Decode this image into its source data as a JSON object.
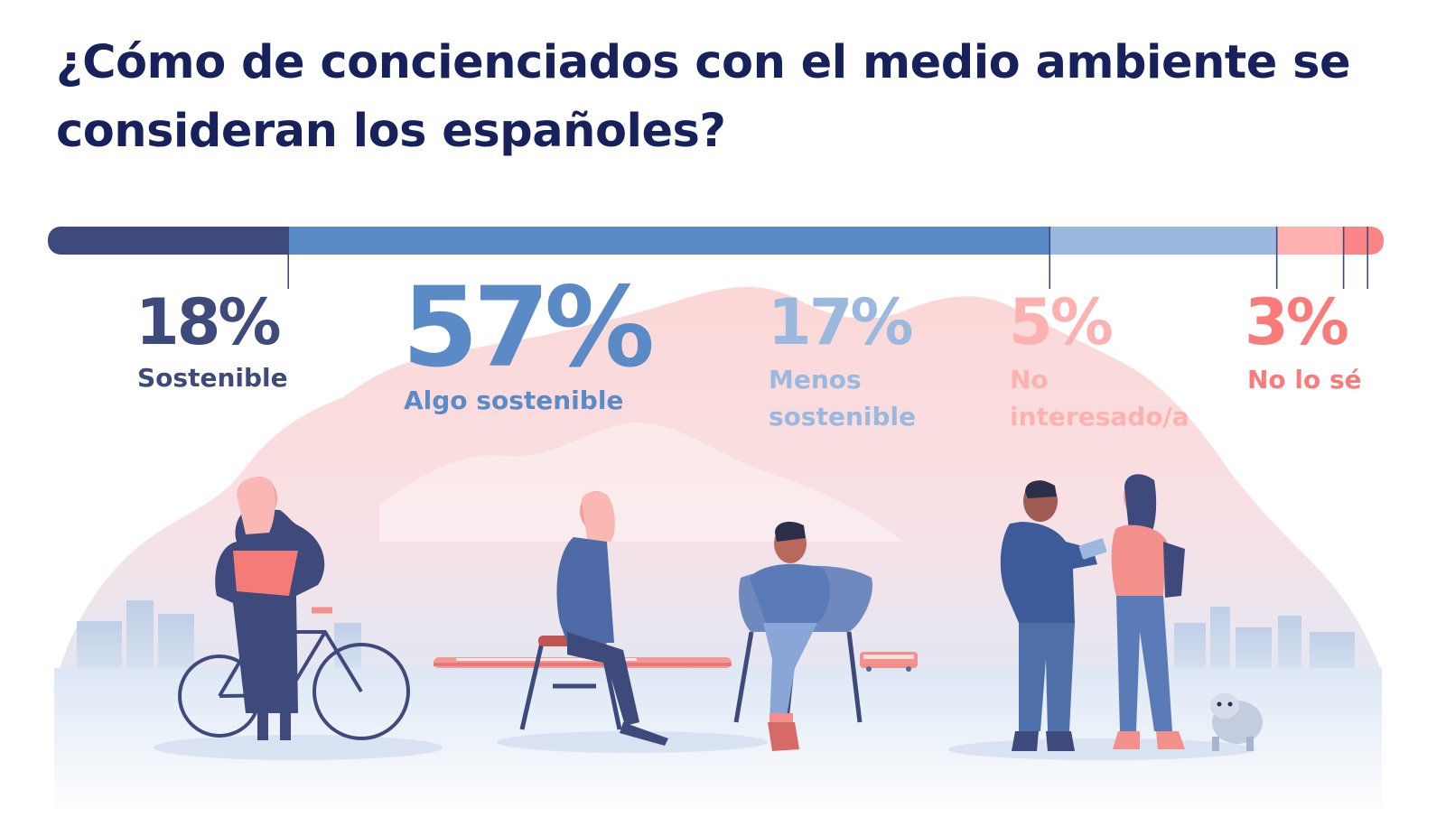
{
  "title": "¿Cómo de concienciados con el medio ambiente se consideran los españoles?",
  "colors": {
    "title": "#17215c",
    "segments": [
      "#3e4a7c",
      "#5b8bc7",
      "#9bb8df",
      "#fdb2b1",
      "#fb8586"
    ],
    "labels": [
      "#3e4a7c",
      "#5b8bc7",
      "#9bb8df",
      "#fdb2b1",
      "#fb7a7a"
    ]
  },
  "chart_data": {
    "type": "bar",
    "orientation": "horizontal-stacked",
    "categories": [
      "Sostenible",
      "Algo sostenible",
      "Menos sostenible",
      "No interesado/a",
      "No lo sé"
    ],
    "values": [
      18,
      57,
      17,
      5,
      3
    ],
    "value_labels": [
      "18%",
      "57%",
      "17%",
      "5%",
      "3%"
    ],
    "unit": "%",
    "xlim": [
      0,
      100
    ]
  },
  "illustration": {
    "icons": [
      "mountain-silhouette-icon",
      "city-skyline-icon",
      "bicycle-icon",
      "train-icon",
      "bus-icon",
      "chair-icon",
      "armchair-icon",
      "dog-icon",
      "person-icon"
    ]
  }
}
